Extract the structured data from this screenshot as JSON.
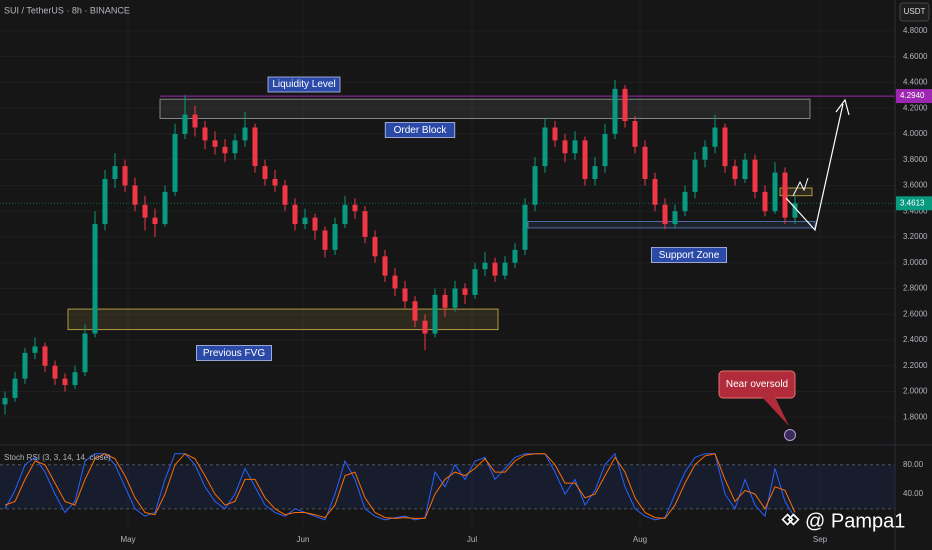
{
  "chart_data": {
    "type": "candlestick",
    "title": "SUI / TetherUS · 8h · BINANCE",
    "currency": "USDT",
    "ylim": [
      1.6,
      5.04
    ],
    "yticks": [
      {
        "value": 4.8,
        "label": "4.8000"
      },
      {
        "value": 4.6,
        "label": "4.6000"
      },
      {
        "value": 4.4,
        "label": "4.4000"
      },
      {
        "value": 4.2,
        "label": "4.2000"
      },
      {
        "value": 4.0,
        "label": "4.0000"
      },
      {
        "value": 3.8,
        "label": "3.8000"
      },
      {
        "value": 3.6,
        "label": "3.6000"
      },
      {
        "value": 3.4,
        "label": "3.4000"
      },
      {
        "value": 3.2,
        "label": "3.2000"
      },
      {
        "value": 3.0,
        "label": "3.0000"
      },
      {
        "value": 2.8,
        "label": "2.8000"
      },
      {
        "value": 2.6,
        "label": "2.6000"
      },
      {
        "value": 2.4,
        "label": "2.4000"
      },
      {
        "value": 2.2,
        "label": "2.2000"
      },
      {
        "value": 2.0,
        "label": "2.0000"
      },
      {
        "value": 1.8,
        "label": "1.8000"
      }
    ],
    "xlim": [
      -0.5,
      89
    ],
    "xticks": [
      {
        "value": 12.3,
        "label": "May"
      },
      {
        "value": 29.8,
        "label": "Jun"
      },
      {
        "value": 46.7,
        "label": "Jul"
      },
      {
        "value": 63.5,
        "label": "Aug"
      },
      {
        "value": 81.5,
        "label": "Sep"
      }
    ],
    "up_color": "#089981",
    "down_color": "#f23645",
    "ohlc": [
      [
        1.9,
        2.0,
        1.82,
        1.95
      ],
      [
        1.95,
        2.15,
        1.92,
        2.1
      ],
      [
        2.1,
        2.34,
        2.06,
        2.3
      ],
      [
        2.3,
        2.42,
        2.25,
        2.35
      ],
      [
        2.35,
        2.38,
        2.15,
        2.2
      ],
      [
        2.2,
        2.24,
        2.05,
        2.1
      ],
      [
        2.1,
        2.14,
        2.0,
        2.05
      ],
      [
        2.05,
        2.2,
        2.02,
        2.15
      ],
      [
        2.15,
        2.52,
        2.12,
        2.45
      ],
      [
        2.45,
        3.4,
        2.42,
        3.3
      ],
      [
        3.3,
        3.72,
        3.25,
        3.65
      ],
      [
        3.65,
        3.85,
        3.58,
        3.75
      ],
      [
        3.75,
        3.8,
        3.55,
        3.6
      ],
      [
        3.6,
        3.66,
        3.4,
        3.45
      ],
      [
        3.45,
        3.52,
        3.25,
        3.35
      ],
      [
        3.35,
        3.42,
        3.2,
        3.3
      ],
      [
        3.3,
        3.6,
        3.28,
        3.55
      ],
      [
        3.55,
        4.08,
        3.52,
        4.0
      ],
      [
        4.0,
        4.3,
        3.96,
        4.15
      ],
      [
        4.15,
        4.22,
        3.98,
        4.05
      ],
      [
        4.05,
        4.1,
        3.88,
        3.95
      ],
      [
        3.95,
        4.02,
        3.84,
        3.9
      ],
      [
        3.9,
        3.96,
        3.78,
        3.85
      ],
      [
        3.85,
        4.0,
        3.8,
        3.95
      ],
      [
        3.95,
        4.17,
        3.9,
        4.05
      ],
      [
        4.05,
        4.08,
        3.7,
        3.75
      ],
      [
        3.75,
        3.8,
        3.6,
        3.65
      ],
      [
        3.65,
        3.72,
        3.55,
        3.6
      ],
      [
        3.6,
        3.64,
        3.4,
        3.45
      ],
      [
        3.45,
        3.5,
        3.25,
        3.3
      ],
      [
        3.3,
        3.42,
        3.26,
        3.35
      ],
      [
        3.35,
        3.38,
        3.18,
        3.25
      ],
      [
        3.25,
        3.28,
        3.04,
        3.1
      ],
      [
        3.1,
        3.35,
        3.06,
        3.3
      ],
      [
        3.3,
        3.52,
        3.27,
        3.45
      ],
      [
        3.45,
        3.5,
        3.34,
        3.4
      ],
      [
        3.4,
        3.44,
        3.15,
        3.2
      ],
      [
        3.2,
        3.25,
        3.0,
        3.05
      ],
      [
        3.05,
        3.1,
        2.85,
        2.9
      ],
      [
        2.9,
        2.96,
        2.74,
        2.8
      ],
      [
        2.8,
        2.86,
        2.64,
        2.7
      ],
      [
        2.7,
        2.74,
        2.5,
        2.55
      ],
      [
        2.55,
        2.6,
        2.32,
        2.45
      ],
      [
        2.45,
        2.8,
        2.42,
        2.75
      ],
      [
        2.75,
        2.8,
        2.58,
        2.65
      ],
      [
        2.65,
        2.86,
        2.62,
        2.8
      ],
      [
        2.8,
        2.84,
        2.68,
        2.75
      ],
      [
        2.75,
        3.0,
        2.72,
        2.95
      ],
      [
        2.95,
        3.08,
        2.9,
        3.0
      ],
      [
        3.0,
        3.04,
        2.85,
        2.9
      ],
      [
        2.9,
        3.05,
        2.87,
        3.0
      ],
      [
        3.0,
        3.15,
        2.96,
        3.1
      ],
      [
        3.1,
        3.5,
        3.06,
        3.45
      ],
      [
        3.45,
        3.82,
        3.4,
        3.75
      ],
      [
        3.75,
        4.12,
        3.7,
        4.05
      ],
      [
        4.05,
        4.1,
        3.9,
        3.95
      ],
      [
        3.95,
        4.0,
        3.78,
        3.85
      ],
      [
        3.85,
        4.02,
        3.8,
        3.95
      ],
      [
        3.95,
        3.98,
        3.6,
        3.65
      ],
      [
        3.65,
        3.82,
        3.6,
        3.75
      ],
      [
        3.75,
        4.08,
        3.7,
        4.0
      ],
      [
        4.0,
        4.42,
        3.96,
        4.35
      ],
      [
        4.35,
        4.38,
        4.05,
        4.1
      ],
      [
        4.1,
        4.14,
        3.85,
        3.9
      ],
      [
        3.9,
        3.95,
        3.6,
        3.65
      ],
      [
        3.65,
        3.7,
        3.4,
        3.45
      ],
      [
        3.45,
        3.5,
        3.26,
        3.3
      ],
      [
        3.3,
        3.45,
        3.27,
        3.4
      ],
      [
        3.4,
        3.6,
        3.36,
        3.55
      ],
      [
        3.55,
        3.86,
        3.5,
        3.8
      ],
      [
        3.8,
        3.95,
        3.74,
        3.9
      ],
      [
        3.9,
        4.15,
        3.85,
        4.05
      ],
      [
        4.05,
        4.08,
        3.7,
        3.75
      ],
      [
        3.75,
        3.8,
        3.6,
        3.65
      ],
      [
        3.65,
        3.85,
        3.62,
        3.8
      ],
      [
        3.8,
        3.84,
        3.5,
        3.55
      ],
      [
        3.55,
        3.6,
        3.36,
        3.4
      ],
      [
        3.4,
        3.78,
        3.38,
        3.7
      ],
      [
        3.7,
        3.74,
        3.3,
        3.35
      ],
      [
        3.35,
        3.52,
        3.3,
        3.4613
      ]
    ],
    "liquidity_level": {
      "value": 4.294,
      "label": "4.2940",
      "from": 15.5,
      "color": "#9c27b0"
    },
    "last_price": {
      "value": 3.4613,
      "label": "3.4613"
    },
    "zones": [
      {
        "label": "Order Block",
        "low": 4.12,
        "high": 4.27,
        "from": 15.5,
        "to": 80.5,
        "color": "#9e9e9e"
      },
      {
        "label": "Previous FVG",
        "low": 2.48,
        "high": 2.64,
        "from": 6.3,
        "to": 49.3,
        "color": "#d4b84a"
      },
      {
        "label": "Support Zone",
        "low": 3.27,
        "high": 3.32,
        "from": 52.3,
        "to": 81,
        "color": "#5c7cc8"
      },
      {
        "low": 3.52,
        "high": 3.58,
        "from": 77.5,
        "to": 80.7,
        "color": "#d4b84a"
      }
    ],
    "annotations": {
      "liquidity": "Liquidity Level",
      "callout": "Near oversold"
    },
    "indicator": {
      "title": "Stoch RSI (3, 3, 14, 14, close)",
      "ylim": [
        -2,
        100
      ],
      "band": [
        20,
        80
      ],
      "yticks": [
        {
          "value": 80,
          "label": "80.00"
        },
        {
          "value": 40,
          "label": "40.00"
        }
      ],
      "series": [
        {
          "name": "K",
          "color": "#2962ff",
          "values": [
            20,
            45,
            80,
            90,
            70,
            40,
            15,
            30,
            85,
            95,
            95,
            80,
            50,
            20,
            10,
            15,
            60,
            95,
            95,
            80,
            50,
            30,
            20,
            40,
            75,
            50,
            25,
            15,
            10,
            20,
            15,
            10,
            5,
            40,
            85,
            60,
            20,
            10,
            5,
            8,
            10,
            5,
            8,
            70,
            50,
            80,
            60,
            85,
            90,
            60,
            75,
            90,
            95,
            95,
            95,
            70,
            40,
            60,
            25,
            45,
            80,
            95,
            50,
            20,
            10,
            5,
            8,
            40,
            70,
            90,
            95,
            95,
            40,
            20,
            60,
            25,
            10,
            75,
            30,
            8
          ]
        },
        {
          "name": "D",
          "color": "#ff6d00",
          "values": [
            25,
            30,
            60,
            85,
            80,
            55,
            30,
            25,
            60,
            88,
            95,
            88,
            65,
            35,
            15,
            12,
            40,
            80,
            95,
            88,
            65,
            40,
            25,
            30,
            60,
            60,
            35,
            20,
            12,
            15,
            15,
            12,
            8,
            25,
            65,
            70,
            35,
            15,
            8,
            7,
            8,
            7,
            7,
            40,
            60,
            70,
            65,
            75,
            88,
            70,
            70,
            85,
            93,
            95,
            95,
            80,
            55,
            55,
            35,
            40,
            65,
            90,
            70,
            35,
            15,
            8,
            7,
            25,
            55,
            80,
            92,
            95,
            60,
            30,
            45,
            40,
            20,
            50,
            45,
            15
          ]
        }
      ]
    },
    "watermark": "@ Pampa1"
  }
}
